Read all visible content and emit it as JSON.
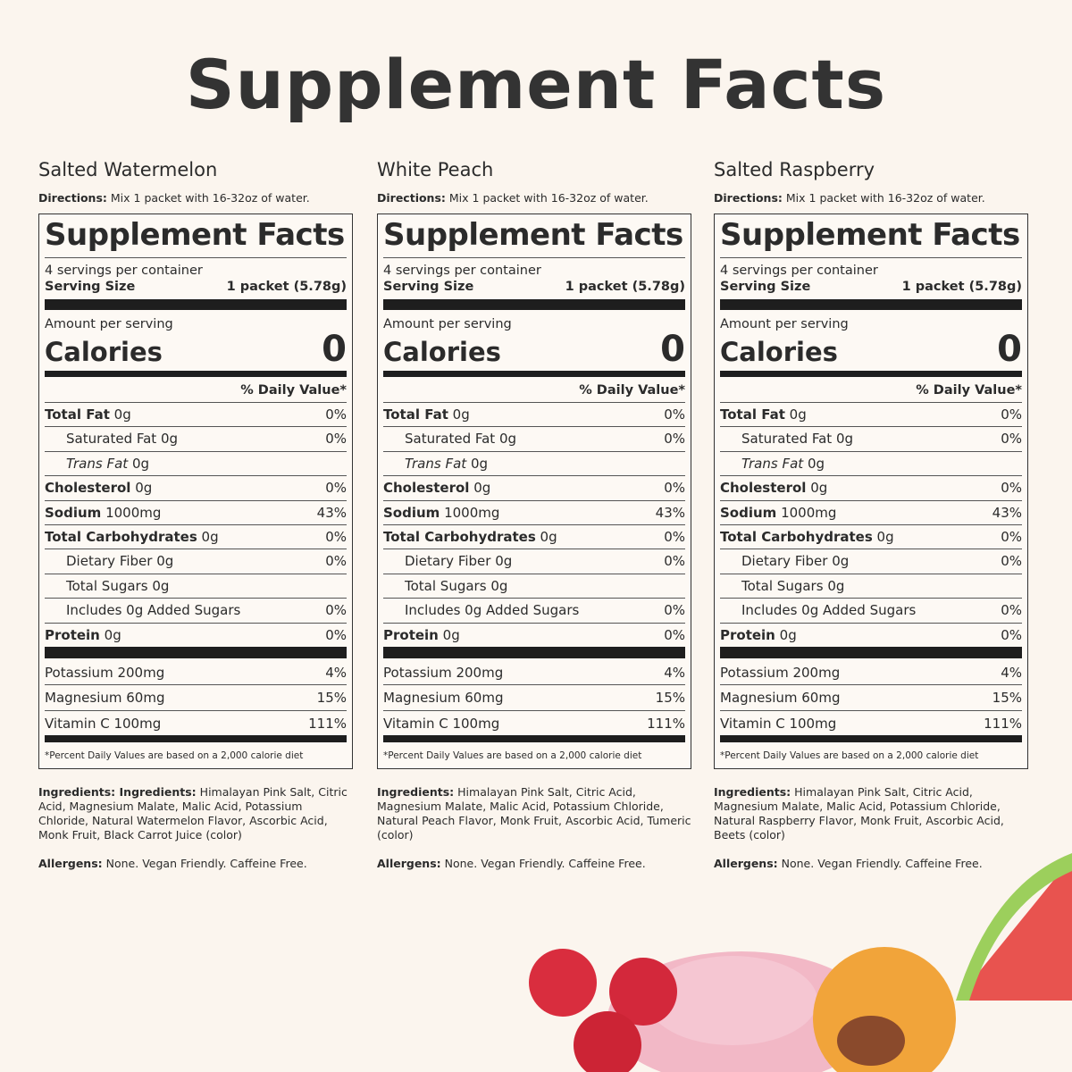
{
  "header": {
    "title": "Supplement Facts"
  },
  "panels": [
    {
      "flavor": "Salted Watermelon",
      "directions_label": "Directions:",
      "directions": "Mix 1 packet with 16-32oz of water.",
      "label_title": "Supplement Facts",
      "servings": "4 servings per container",
      "serving_size_label": "Serving Size",
      "serving_size": "1 packet (5.78g)",
      "amount_label": "Amount per serving",
      "calories_label": "Calories",
      "calories": "0",
      "dv_header": "% Daily Value*",
      "rows": [
        {
          "name": "Total Fat",
          "amount": "0g",
          "dv": "0%"
        },
        {
          "name": "Saturated Fat",
          "amount": "0g",
          "dv": "0%"
        },
        {
          "name": "Trans Fat",
          "amount": "0g"
        },
        {
          "name": "Cholesterol",
          "amount": "0g",
          "dv": "0%"
        },
        {
          "name": "Sodium",
          "amount": "1000mg",
          "dv": "43%"
        },
        {
          "name": "Total Carbohydrates",
          "amount": "0g",
          "dv": "0%"
        },
        {
          "name": "Dietary Fiber",
          "amount": "0g",
          "dv": "0%"
        },
        {
          "name": "Total Sugars",
          "amount": "0g"
        },
        {
          "name": "Includes 0g Added Sugars",
          "dv": "0%"
        },
        {
          "name": "Protein",
          "amount": "0g",
          "dv": "0%"
        }
      ],
      "minerals": [
        {
          "name": "Potassium 200mg",
          "dv": "4%"
        },
        {
          "name": "Magnesium 60mg",
          "dv": "15%"
        },
        {
          "name": "Vitamin C 100mg",
          "dv": "111%"
        }
      ],
      "footnote": "*Percent Daily Values are based on a 2,000 calorie diet",
      "ingredients_label": "Ingredients: Ingredients:",
      "ingredients": "Himalayan Pink Salt, Citric Acid, Magnesium Malate, Malic Acid, Potassium Chloride, Natural Watermelon Flavor, Ascorbic Acid, Monk Fruit, Black Carrot Juice (color)",
      "allergens_label": "Allergens:",
      "allergens": "None. Vegan Friendly. Caffeine Free."
    },
    {
      "flavor": "White Peach",
      "directions_label": "Directions:",
      "directions": "Mix 1 packet with 16-32oz of water.",
      "label_title": "Supplement Facts",
      "servings": "4 servings per container",
      "serving_size_label": "Serving Size",
      "serving_size": "1 packet (5.78g)",
      "amount_label": "Amount per serving",
      "calories_label": "Calories",
      "calories": "0",
      "dv_header": "% Daily Value*",
      "rows": [
        {
          "name": "Total Fat",
          "amount": "0g",
          "dv": "0%"
        },
        {
          "name": "Saturated Fat",
          "amount": "0g",
          "dv": "0%"
        },
        {
          "name": "Trans Fat",
          "amount": "0g"
        },
        {
          "name": "Cholesterol",
          "amount": "0g",
          "dv": "0%"
        },
        {
          "name": "Sodium",
          "amount": "1000mg",
          "dv": "43%"
        },
        {
          "name": "Total Carbohydrates",
          "amount": "0g",
          "dv": "0%"
        },
        {
          "name": "Dietary Fiber",
          "amount": "0g",
          "dv": "0%"
        },
        {
          "name": "Total Sugars",
          "amount": "0g"
        },
        {
          "name": "Includes 0g Added Sugars",
          "dv": "0%"
        },
        {
          "name": "Protein",
          "amount": "0g",
          "dv": "0%"
        }
      ],
      "minerals": [
        {
          "name": "Potassium 200mg",
          "dv": "4%"
        },
        {
          "name": "Magnesium 60mg",
          "dv": "15%"
        },
        {
          "name": "Vitamin C 100mg",
          "dv": "111%"
        }
      ],
      "footnote": "*Percent Daily Values are based on a 2,000 calorie diet",
      "ingredients_label": "Ingredients:",
      "ingredients": "Himalayan Pink Salt, Citric Acid, Magnesium Malate, Malic Acid, Potassium Chloride, Natural Peach Flavor, Monk Fruit, Ascorbic Acid, Tumeric (color)",
      "allergens_label": "Allergens:",
      "allergens": "None. Vegan Friendly. Caffeine Free."
    },
    {
      "flavor": "Salted Raspberry",
      "directions_label": "Directions:",
      "directions": "Mix 1 packet with 16-32oz of water.",
      "label_title": "Supplement Facts",
      "servings": "4 servings per container",
      "serving_size_label": "Serving Size",
      "serving_size": "1 packet (5.78g)",
      "amount_label": "Amount per serving",
      "calories_label": "Calories",
      "calories": "0",
      "dv_header": "% Daily Value*",
      "rows": [
        {
          "name": "Total Fat",
          "amount": "0g",
          "dv": "0%"
        },
        {
          "name": "Saturated Fat",
          "amount": "0g",
          "dv": "0%"
        },
        {
          "name": "Trans Fat",
          "amount": "0g"
        },
        {
          "name": "Cholesterol",
          "amount": "0g",
          "dv": "0%"
        },
        {
          "name": "Sodium",
          "amount": "1000mg",
          "dv": "43%"
        },
        {
          "name": "Total Carbohydrates",
          "amount": "0g",
          "dv": "0%"
        },
        {
          "name": "Dietary Fiber",
          "amount": "0g",
          "dv": "0%"
        },
        {
          "name": "Total Sugars",
          "amount": "0g"
        },
        {
          "name": "Includes 0g Added Sugars",
          "dv": "0%"
        },
        {
          "name": "Protein",
          "amount": "0g",
          "dv": "0%"
        }
      ],
      "minerals": [
        {
          "name": "Potassium 200mg",
          "dv": "4%"
        },
        {
          "name": "Magnesium 60mg",
          "dv": "15%"
        },
        {
          "name": "Vitamin C 100mg",
          "dv": "111%"
        }
      ],
      "footnote": "*Percent Daily Values are based on a 2,000 calorie diet",
      "ingredients_label": "Ingredients:",
      "ingredients": "Himalayan Pink Salt, Citric Acid, Magnesium Malate, Malic Acid, Potassium Chloride, Natural Raspberry Flavor, Monk Fruit, Ascorbic Acid, Beets (color)",
      "allergens_label": "Allergens:",
      "allergens": "None. Vegan Friendly. Caffeine Free."
    }
  ]
}
